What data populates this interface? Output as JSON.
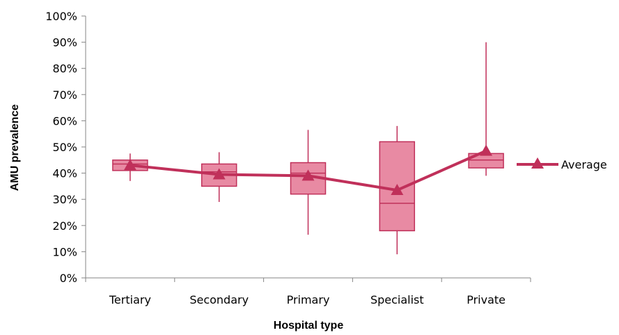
{
  "chart_data": {
    "type": "box",
    "title": "",
    "xlabel": "Hospital type",
    "ylabel": "AMU prevalence",
    "categories": [
      "Tertiary",
      "Secondary",
      "Primary",
      "Specialist",
      "Private"
    ],
    "ylim": [
      0,
      100
    ],
    "yticks": [
      "0%",
      "10%",
      "20%",
      "30%",
      "40%",
      "50%",
      "60%",
      "70%",
      "80%",
      "90%",
      "100%"
    ],
    "boxes": [
      {
        "category": "Tertiary",
        "min": 37,
        "q1": 41,
        "median": 43.5,
        "q3": 45,
        "max": 47.5
      },
      {
        "category": "Secondary",
        "min": 29,
        "q1": 35,
        "median": 40.5,
        "q3": 43.5,
        "max": 48
      },
      {
        "category": "Primary",
        "min": 16.5,
        "q1": 32,
        "median": 40,
        "q3": 44,
        "max": 56.5
      },
      {
        "category": "Specialist",
        "min": 9,
        "q1": 18,
        "median": 28.5,
        "q3": 52,
        "max": 58
      },
      {
        "category": "Private",
        "min": 39,
        "q1": 42,
        "median": 45,
        "q3": 47.5,
        "max": 90
      }
    ],
    "series": [
      {
        "name": "Average",
        "values": [
          43,
          39.5,
          39,
          33.5,
          48.5
        ]
      }
    ],
    "legend": {
      "position": "right"
    },
    "colors": {
      "box_fill": "#e88aa3",
      "box_stroke": "#c0305a",
      "line": "#c0305a",
      "axis": "#868686"
    },
    "grid": false
  }
}
